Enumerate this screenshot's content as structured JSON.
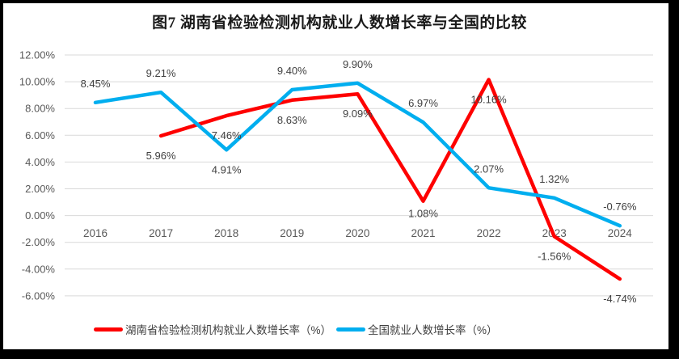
{
  "colors": {
    "frame": "#000000",
    "page_bg": "#ffffff",
    "gridline": "#d9d9d9",
    "axis_text": "#595959",
    "data_label_text": "#404040",
    "hunan_red": "#fe0000",
    "national_blue": "#00aeef"
  },
  "chart_data": {
    "type": "line",
    "title": "图7 湖南省检验检测机构就业人数增长率与全国的比较",
    "categories": [
      "2016",
      "2017",
      "2018",
      "2019",
      "2020",
      "2021",
      "2022",
      "2023",
      "2024"
    ],
    "series": [
      {
        "name": "湖南省检验检测机构就业人数增长率（%）",
        "color": "#fe0000",
        "values": [
          null,
          5.96,
          7.46,
          8.63,
          9.09,
          1.08,
          10.16,
          -1.56,
          -4.74
        ],
        "point_labels": [
          "",
          "5.96%",
          "7.46%",
          "8.63%",
          "9.09%",
          "1.08%",
          "10.16%",
          "-1.56%",
          "-4.74%"
        ],
        "label_side": [
          "",
          "below",
          "below",
          "below",
          "below",
          "below_close",
          "below",
          "below",
          "below"
        ]
      },
      {
        "name": "全国就业人数增长率（%）",
        "color": "#00aeef",
        "values": [
          8.45,
          9.21,
          4.91,
          9.4,
          9.9,
          6.97,
          2.07,
          1.32,
          -0.76
        ],
        "point_labels": [
          "8.45%",
          "9.21%",
          "4.91%",
          "9.40%",
          "9.90%",
          "6.97%",
          "2.07%",
          "1.32%",
          "-0.76%"
        ],
        "label_side": [
          "above",
          "above",
          "below",
          "above",
          "above",
          "above",
          "above",
          "above",
          "above"
        ]
      }
    ],
    "y_axis": {
      "ticks": [
        {
          "label": "12.00%",
          "value": 12
        },
        {
          "label": "10.00%",
          "value": 10
        },
        {
          "label": "8.00%",
          "value": 8
        },
        {
          "label": "6.00%",
          "value": 6
        },
        {
          "label": "4.00%",
          "value": 4
        },
        {
          "label": "2.00%",
          "value": 2
        },
        {
          "label": "0.00%",
          "value": 0
        },
        {
          "label": "-2.00%",
          "value": -2
        },
        {
          "label": "-4.00%",
          "value": -4
        },
        {
          "label": "-6.00%",
          "value": -6
        }
      ],
      "ylim": [
        -6,
        12
      ]
    },
    "legend_position": "bottom",
    "grid": "horizontal-only"
  }
}
